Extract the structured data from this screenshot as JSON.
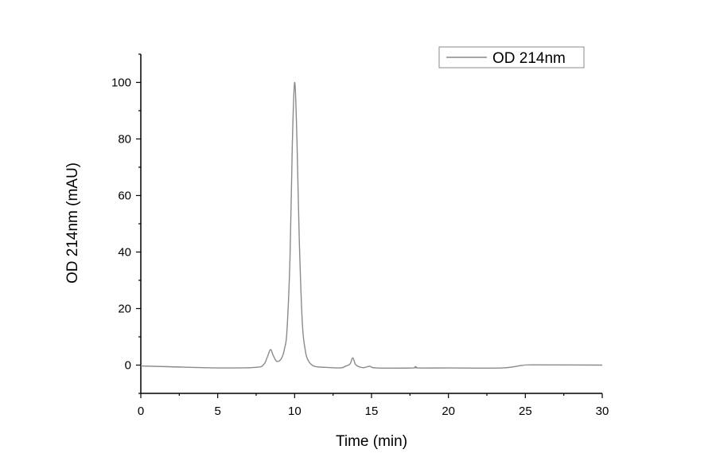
{
  "chart_data": {
    "type": "line",
    "xlabel": "Time (min)",
    "ylabel": "OD 214nm (mAU)",
    "xlim": [
      0,
      30
    ],
    "ylim": [
      -10,
      110
    ],
    "xticks": [
      0,
      5,
      10,
      15,
      20,
      25,
      30
    ],
    "yticks": [
      0,
      20,
      40,
      60,
      80,
      100
    ],
    "grid": false,
    "legend_position": "top-right",
    "line_color": "#8a8a8a",
    "series": [
      {
        "name": "OD 214nm",
        "x": [
          0,
          2,
          5,
          7.5,
          8.0,
          8.2,
          8.43,
          8.6,
          8.8,
          9.0,
          9.2,
          9.35,
          9.5,
          9.7,
          9.85,
          10.0,
          10.15,
          10.3,
          10.5,
          10.7,
          10.9,
          11.2,
          11.6,
          12,
          13,
          13.3,
          13.6,
          13.78,
          13.95,
          14.2,
          14.5,
          14.9,
          15.3,
          17.7,
          17.85,
          18,
          20,
          23.5,
          24.8,
          25.5,
          30
        ],
        "y": [
          -0.3,
          -0.6,
          -1,
          -0.8,
          0.3,
          2.5,
          5.5,
          3.5,
          1.5,
          1.5,
          3,
          6,
          12,
          38,
          78,
          100,
          80,
          45,
          15,
          5,
          1.5,
          -0.2,
          -0.7,
          -0.8,
          -1,
          -0.4,
          0.4,
          2.6,
          0.3,
          -0.6,
          -0.9,
          -0.4,
          -1,
          -1,
          -0.5,
          -1,
          -1,
          -1,
          -0.1,
          0.1,
          0
        ]
      }
    ]
  }
}
